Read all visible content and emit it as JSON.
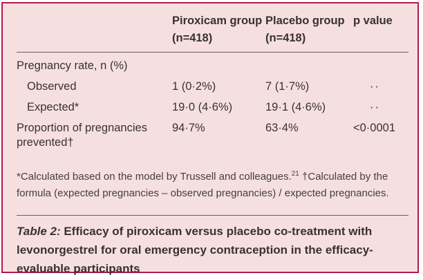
{
  "panel": {
    "border_color": "#b11a4a",
    "background_color": "#f6e0df",
    "rule_color": "#6b5d5b",
    "text_color": "#38322e"
  },
  "chart_data": {
    "type": "table",
    "columns": [
      "",
      "Piroxicam group (n=418)",
      "Placebo group (n=418)",
      "p value"
    ],
    "rows": [
      {
        "label": "Pregnancy rate, n (%)",
        "indent": false,
        "values": [
          "",
          "",
          ""
        ]
      },
      {
        "label": "Observed",
        "indent": true,
        "values": [
          "1 (0·2%)",
          "7 (1·7%)",
          "··"
        ]
      },
      {
        "label": "Expected*",
        "indent": true,
        "values": [
          "19·0 (4·6%)",
          "19·1 (4·6%)",
          "··"
        ]
      },
      {
        "label": "Proportion of pregnancies prevented†",
        "indent": false,
        "values": [
          "94·7%",
          "63·4%",
          "<0·0001"
        ]
      }
    ]
  },
  "table": {
    "columns": [
      "",
      "Piroxicam group (n=418)",
      "Placebo group (n=418)",
      "p value"
    ],
    "rows": [
      {
        "label": "Pregnancy rate, n (%)",
        "values": [
          "",
          "",
          ""
        ]
      },
      {
        "label": "Observed",
        "values": [
          "1 (0·2%)",
          "7 (1·7%)",
          "··"
        ]
      },
      {
        "label": "Expected*",
        "values": [
          "19·0 (4·6%)",
          "19·1 (4·6%)",
          "··"
        ]
      },
      {
        "label": "Proportion of pregnancies prevented†",
        "values": [
          "94·7%",
          "63·4%",
          "<0·0001"
        ]
      }
    ]
  },
  "footnote": {
    "part1": "*Calculated based on the model by Trussell and colleagues.",
    "sup": "21",
    "part2": " †Calculated by the formula (expected pregnancies – observed pregnancies) / expected pregnancies."
  },
  "caption": {
    "label": "Table 2:",
    "text": " Efficacy of piroxicam versus placebo co-treatment with levonorgestrel for oral emergency contraception in the efficacy-evaluable participants"
  }
}
